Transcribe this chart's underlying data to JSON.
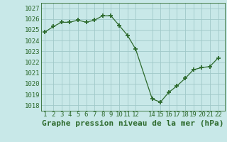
{
  "x": [
    1,
    2,
    3,
    4,
    5,
    6,
    7,
    8,
    9,
    10,
    11,
    12,
    14,
    15,
    16,
    17,
    18,
    19,
    20,
    21,
    22
  ],
  "y": [
    1024.8,
    1025.3,
    1025.7,
    1025.7,
    1025.9,
    1025.7,
    1025.9,
    1026.3,
    1026.3,
    1025.4,
    1024.5,
    1023.2,
    1018.6,
    1018.3,
    1019.2,
    1019.8,
    1020.5,
    1021.3,
    1021.5,
    1021.6,
    1022.4
  ],
  "line_color": "#2d6a2d",
  "marker": "+",
  "bg_color": "#c8e8e8",
  "grid_color": "#a0c8c8",
  "xlabel": "Graphe pression niveau de la mer (hPa)",
  "ylim": [
    1017.5,
    1027.5
  ],
  "yticks": [
    1018,
    1019,
    1020,
    1021,
    1022,
    1023,
    1024,
    1025,
    1026,
    1027
  ],
  "xticks": [
    1,
    2,
    3,
    4,
    5,
    6,
    7,
    8,
    9,
    10,
    11,
    12,
    14,
    15,
    16,
    17,
    18,
    19,
    20,
    21,
    22
  ],
  "xlim": [
    0.5,
    22.8
  ],
  "xlabel_fontsize": 8,
  "ytick_fontsize": 6.5,
  "xtick_fontsize": 6.5
}
